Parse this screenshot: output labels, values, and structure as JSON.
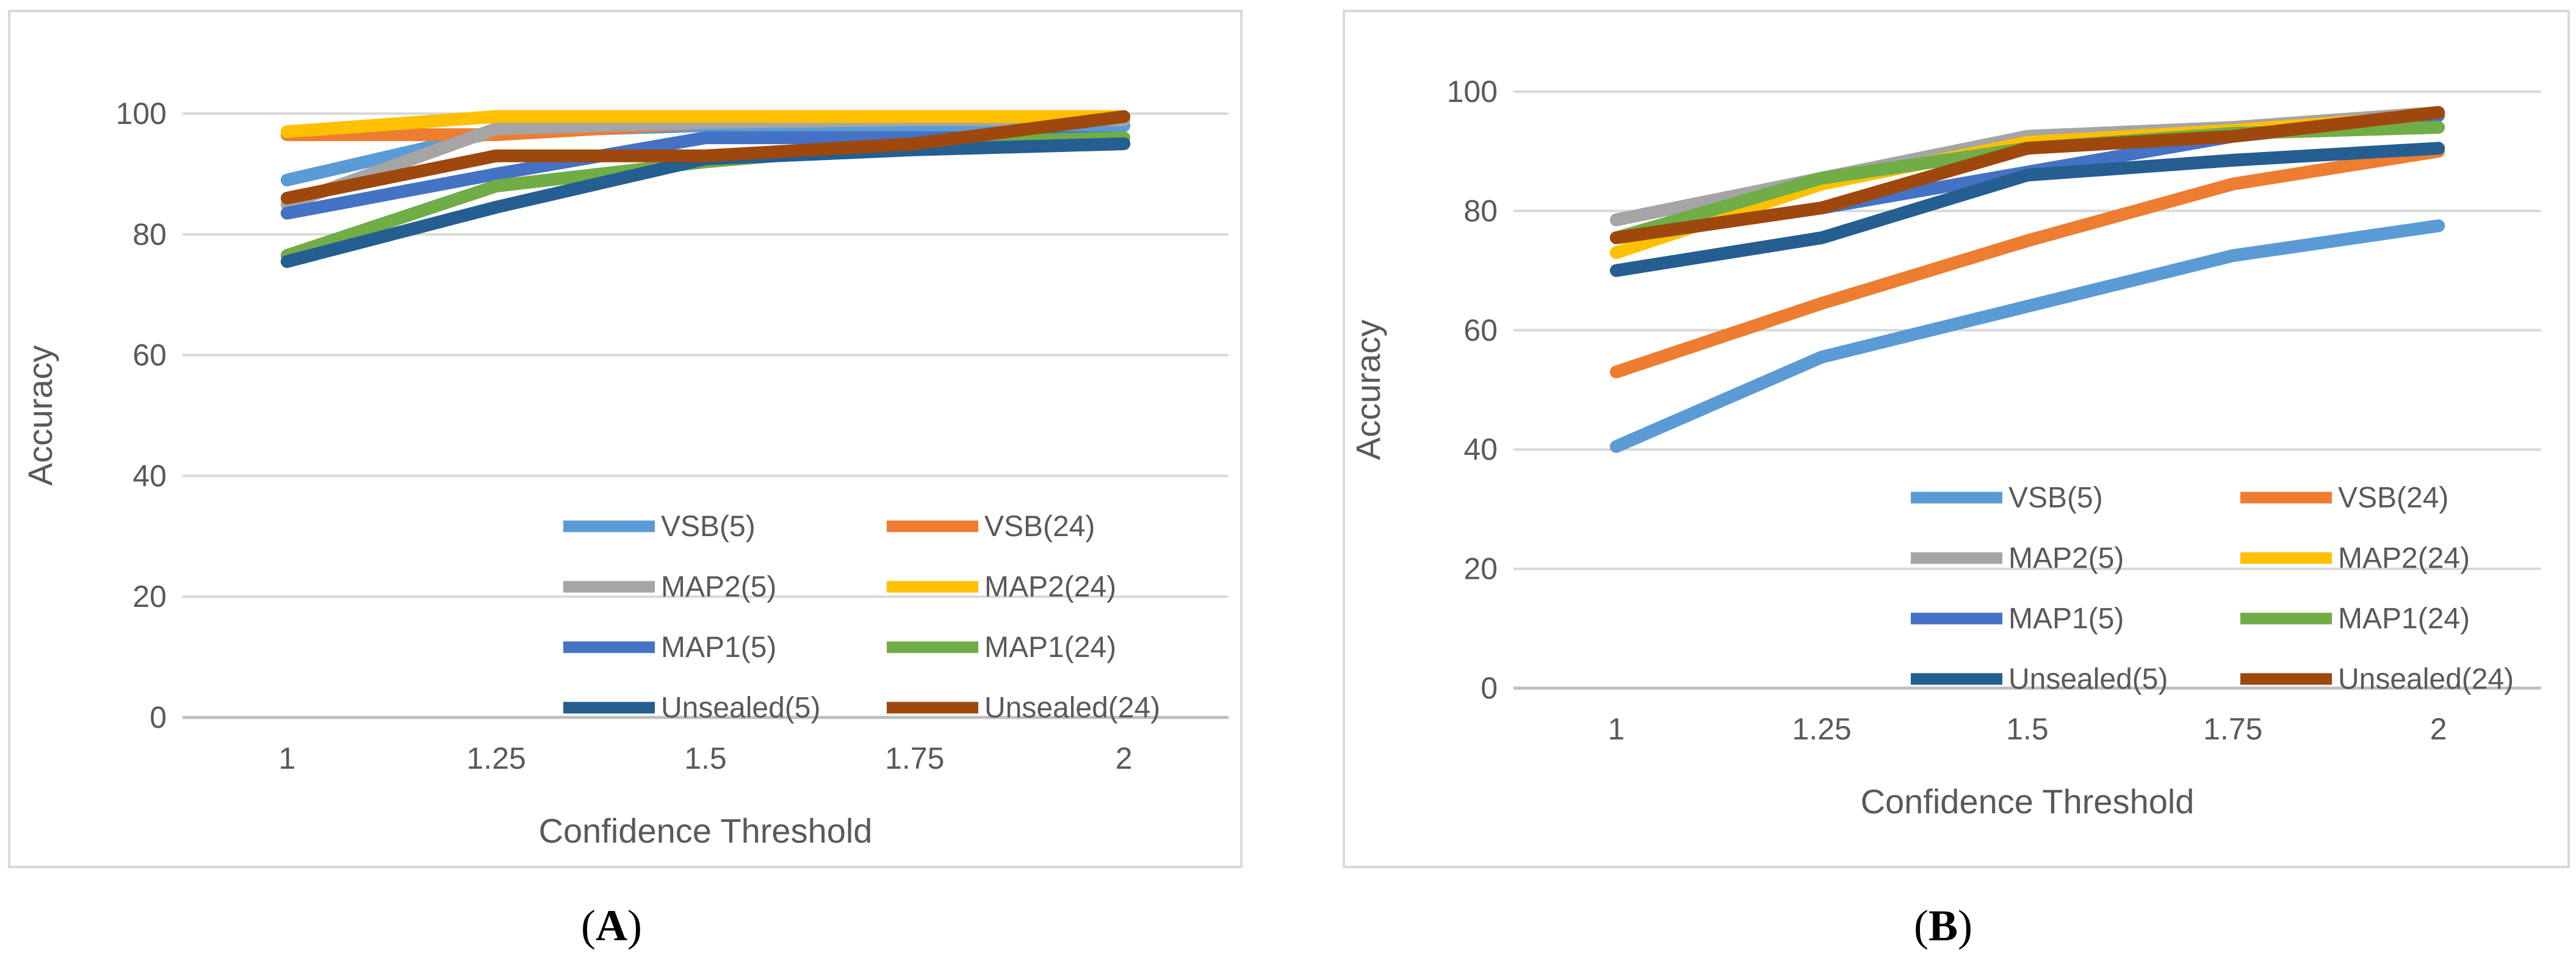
{
  "chart_data": [
    {
      "type": "line",
      "panel": "A",
      "caption_label": "A",
      "xlabel": "Confidence Threshold",
      "ylabel": "Accuracy",
      "categories": [
        "1",
        "1.25",
        "1.5",
        "1.75",
        "2"
      ],
      "ylim": [
        0,
        100
      ],
      "yticks": [
        0,
        20,
        40,
        60,
        80,
        100
      ],
      "grid": true,
      "legend_position": "lower-right",
      "series": [
        {
          "name": "VSB(5)",
          "color": "#5b9bd5",
          "values": [
            89,
            97,
            98,
            98,
            98
          ]
        },
        {
          "name": "VSB(24)",
          "color": "#ed7d31",
          "values": [
            96.5,
            96.5,
            98.5,
            99,
            99
          ]
        },
        {
          "name": "MAP2(5)",
          "color": "#a5a5a5",
          "values": [
            85,
            97.5,
            98.5,
            99,
            99
          ]
        },
        {
          "name": "MAP2(24)",
          "color": "#ffc000",
          "values": [
            97,
            99.5,
            99.5,
            99.5,
            99.5
          ]
        },
        {
          "name": "MAP1(5)",
          "color": "#4472c4",
          "values": [
            83.5,
            90,
            96,
            96,
            96
          ]
        },
        {
          "name": "MAP1(24)",
          "color": "#70ad47",
          "values": [
            76.5,
            88,
            92,
            95,
            96
          ]
        },
        {
          "name": "Unsealed(5)",
          "color": "#255e91",
          "values": [
            75.5,
            84.5,
            92.5,
            94,
            95
          ]
        },
        {
          "name": "Unsealed(24)",
          "color": "#9e480e",
          "values": [
            86,
            93,
            93,
            95,
            99.5
          ]
        }
      ]
    },
    {
      "type": "line",
      "panel": "B",
      "caption_label": "B",
      "xlabel": "Confidence Threshold",
      "ylabel": "Accuracy",
      "categories": [
        "1",
        "1.25",
        "1.5",
        "1.75",
        "2"
      ],
      "ylim": [
        0,
        100
      ],
      "yticks": [
        0,
        20,
        40,
        60,
        80,
        100
      ],
      "grid": true,
      "legend_position": "lower-right",
      "series": [
        {
          "name": "VSB(5)",
          "color": "#5b9bd5",
          "values": [
            40.5,
            55.5,
            64,
            72.5,
            77.5
          ]
        },
        {
          "name": "VSB(24)",
          "color": "#ed7d31",
          "values": [
            53,
            64.5,
            75,
            84.5,
            90
          ]
        },
        {
          "name": "MAP2(5)",
          "color": "#a5a5a5",
          "values": [
            78.5,
            85.5,
            92.5,
            94,
            96.5
          ]
        },
        {
          "name": "MAP2(24)",
          "color": "#ffc000",
          "values": [
            73,
            84.5,
            91.5,
            93.5,
            96
          ]
        },
        {
          "name": "MAP1(5)",
          "color": "#4472c4",
          "values": [
            75.5,
            80.5,
            86.5,
            92.5,
            96
          ]
        },
        {
          "name": "MAP1(24)",
          "color": "#70ad47",
          "values": [
            75.5,
            85.5,
            90.5,
            93,
            94
          ]
        },
        {
          "name": "Unsealed(5)",
          "color": "#255e91",
          "values": [
            70,
            75.5,
            86,
            88.5,
            90.5
          ]
        },
        {
          "name": "Unsealed(24)",
          "color": "#9e480e",
          "values": [
            75.5,
            80.5,
            90.5,
            92.5,
            96.5
          ]
        }
      ]
    }
  ]
}
